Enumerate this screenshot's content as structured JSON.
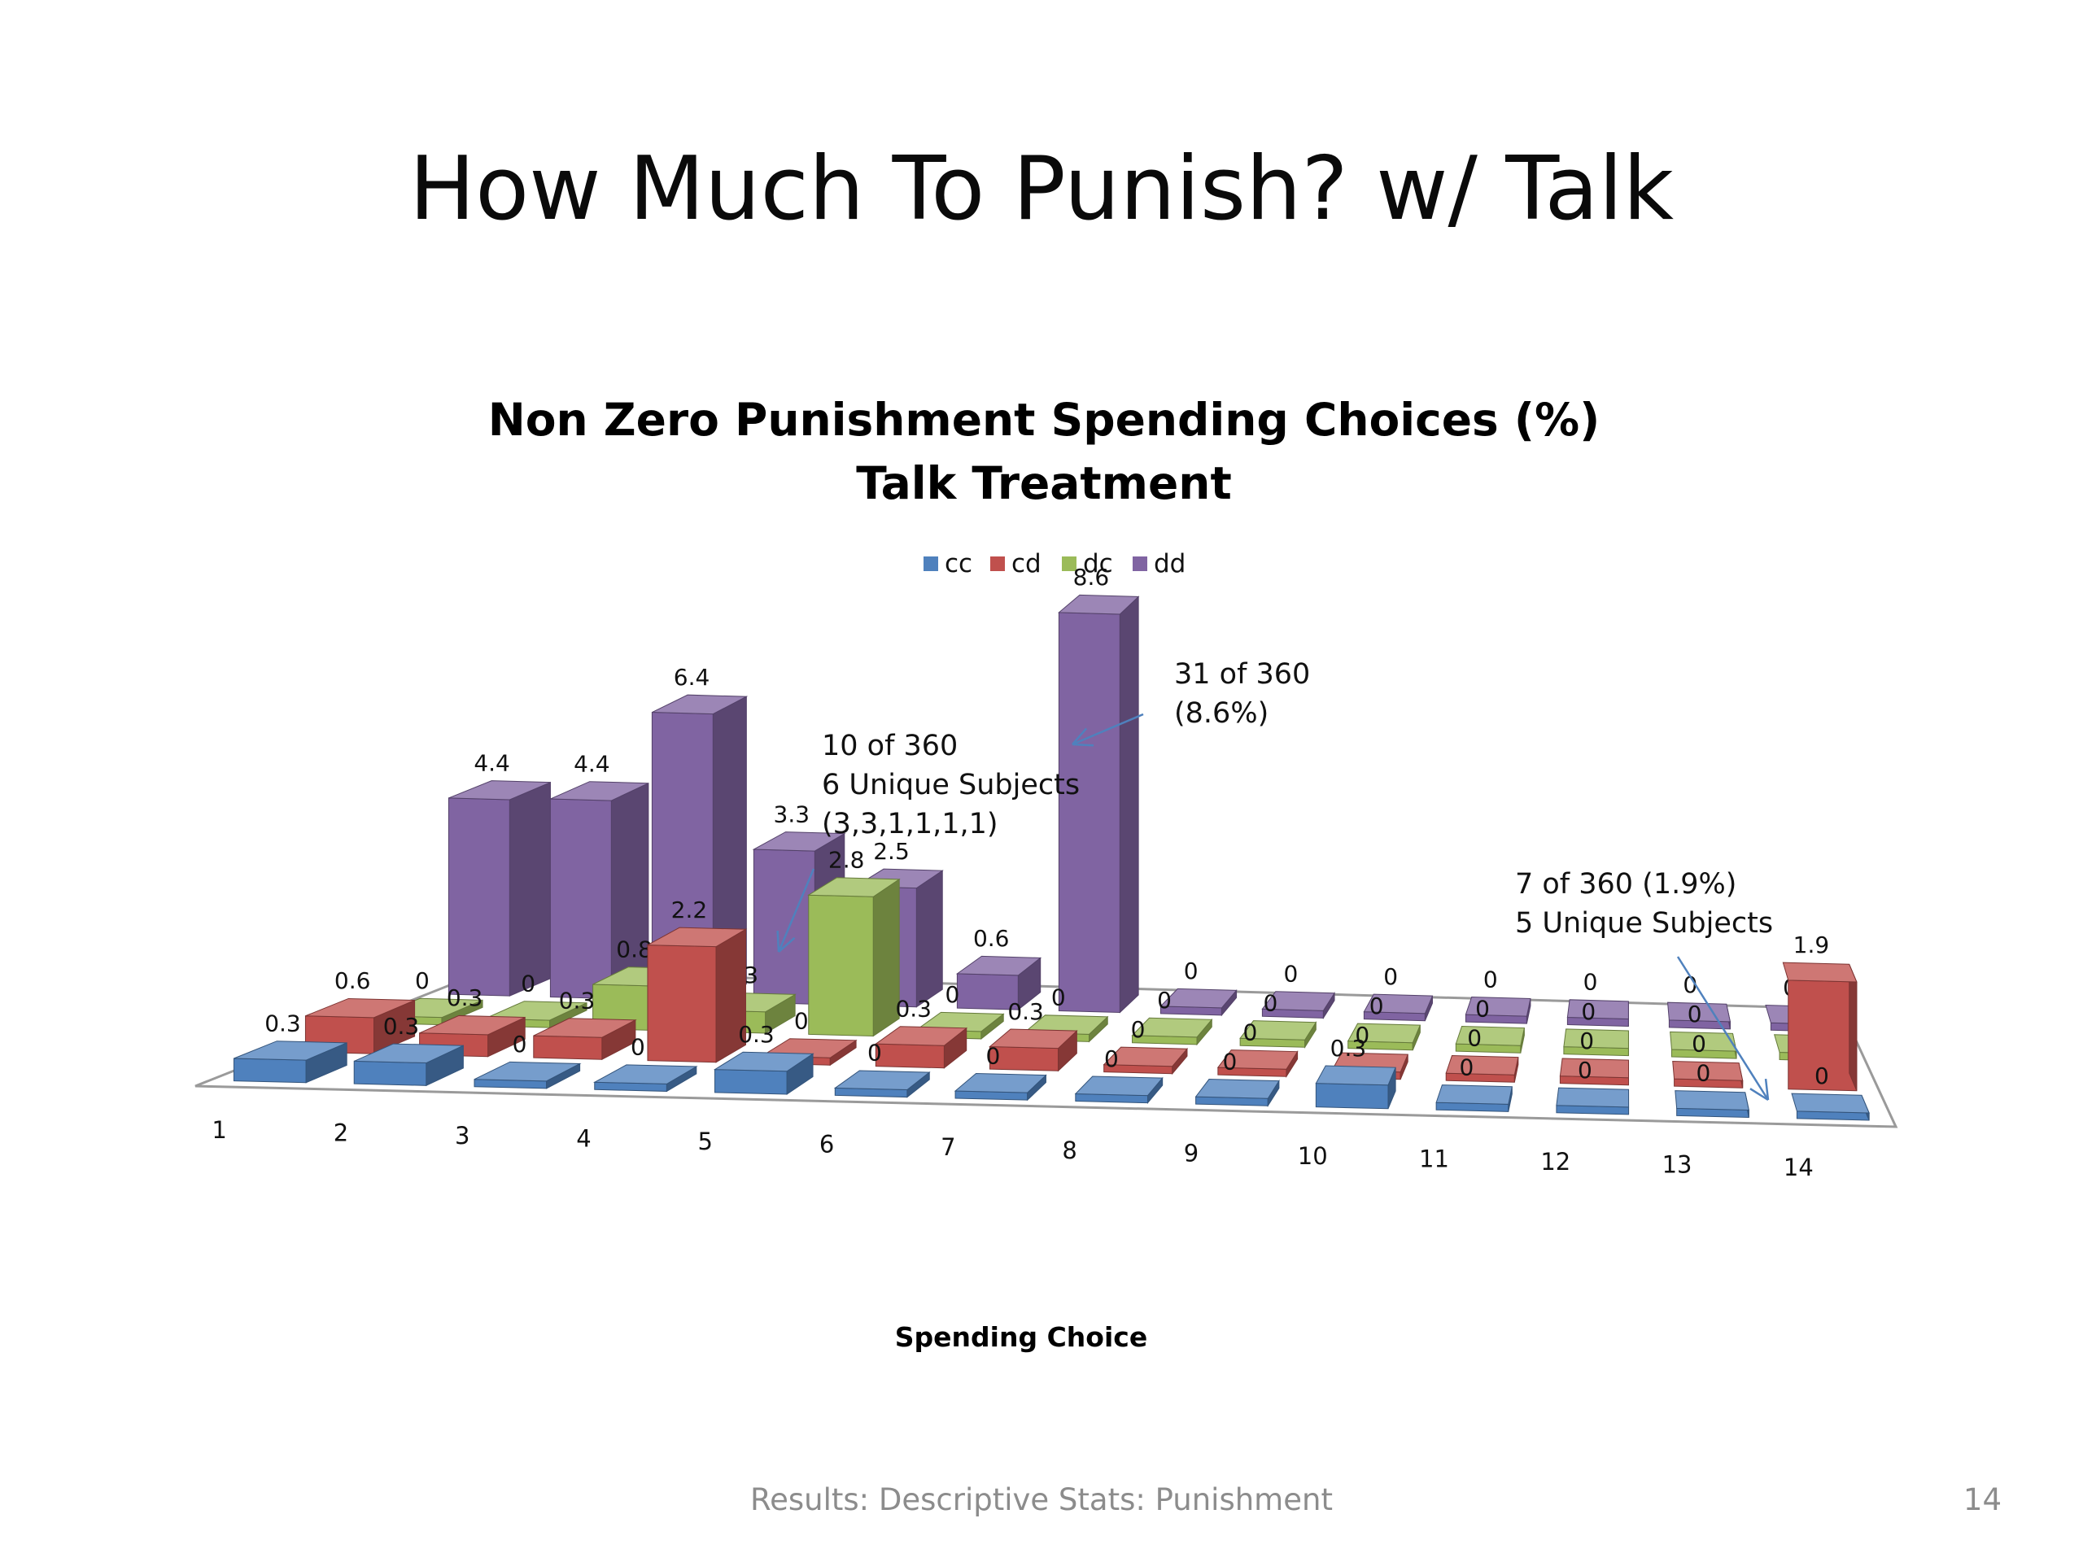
{
  "slide": {
    "title": "How Much To Punish? w/ Talk",
    "footer": "Results: Descriptive Stats: Punishment",
    "page_number": "14"
  },
  "chart_data": {
    "type": "bar",
    "title": "Non Zero Punishment Spending Choices (%)",
    "subtitle": "Talk Treatment",
    "xlabel": "Spending Choice",
    "ylabel": "",
    "categories": [
      "1",
      "2",
      "3",
      "4",
      "5",
      "6",
      "7",
      "8",
      "9",
      "10",
      "11",
      "12",
      "13",
      "14"
    ],
    "series": [
      {
        "name": "cc",
        "color": "#4f81bd",
        "values": [
          0.3,
          0.3,
          0,
          0,
          0.3,
          0,
          0,
          0,
          0,
          0.3,
          0,
          0,
          0,
          0
        ]
      },
      {
        "name": "cd",
        "color": "#c0504d",
        "values": [
          0.6,
          0.3,
          0.3,
          2.2,
          0,
          0.3,
          0.3,
          0,
          0,
          0,
          0,
          0,
          0,
          1.9
        ]
      },
      {
        "name": "dc",
        "color": "#9bbb59",
        "values": [
          0,
          0,
          0.8,
          0.3,
          2.8,
          0,
          0,
          0,
          0,
          0,
          0,
          0,
          0,
          0
        ]
      },
      {
        "name": "dd",
        "color": "#8064a2",
        "values": [
          4.4,
          4.4,
          6.4,
          3.3,
          2.5,
          0.6,
          8.6,
          0,
          0,
          0,
          0,
          0,
          0,
          0
        ]
      }
    ],
    "grid": false,
    "legend_position": "top",
    "annotations": [
      {
        "lines": [
          "31 of 360",
          "(8.6%)"
        ]
      },
      {
        "lines": [
          "10 of 360",
          "6 Unique Subjects",
          "(3,3,1,1,1,1)"
        ]
      },
      {
        "lines": [
          "7 of 360 (1.9%)",
          "5 Unique Subjects"
        ]
      }
    ]
  }
}
